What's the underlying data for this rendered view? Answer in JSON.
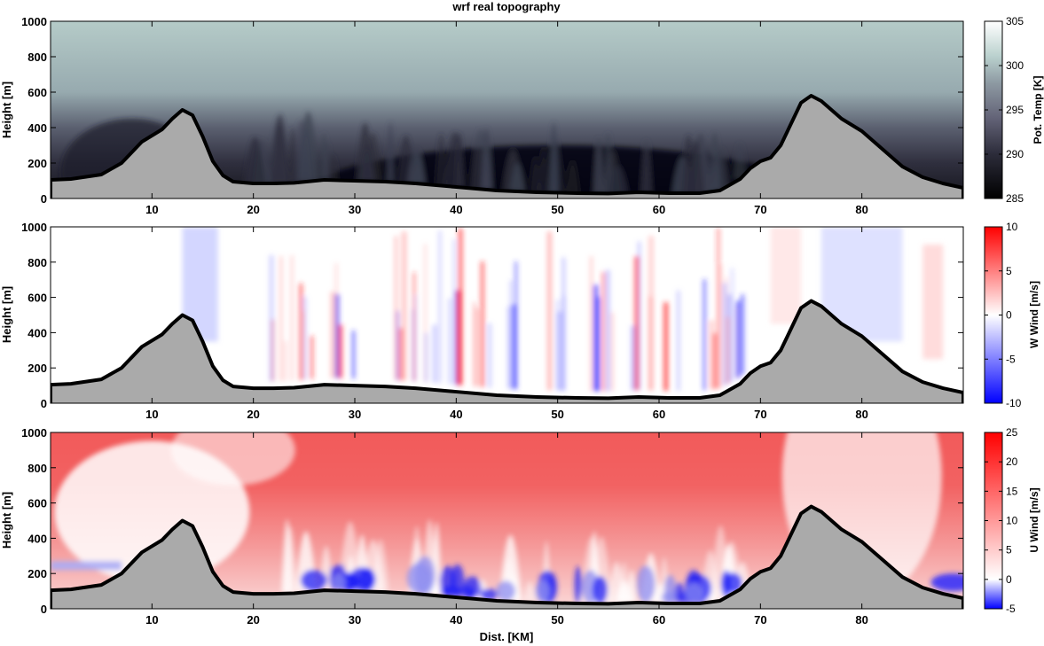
{
  "title": "wrf real topography",
  "colors": {
    "terrain_fill": "#aaaaaa",
    "terrain_line": "#000000",
    "potential_temperature_scale": [
      "#000000",
      "#2c2c3a",
      "#626276",
      "#8d99a2",
      "#b9d0cd",
      "#ffffff"
    ],
    "diverging_scale": [
      "#0000ff",
      "#ffffff",
      "#ff0000"
    ]
  },
  "chart_data": [
    {
      "type": "heatmap",
      "xlabel": "",
      "ylabel": "Height [m]",
      "colorbar_label": "Pot. Temp [K]",
      "colorbar_ticks": [
        285,
        290,
        295,
        300,
        305
      ],
      "clim": [
        285,
        305
      ],
      "xlim": [
        0,
        90
      ],
      "ylim": [
        0,
        1000
      ],
      "x_ticks": [
        10,
        20,
        30,
        40,
        50,
        60,
        70,
        80
      ],
      "y_ticks": [
        0,
        200,
        400,
        600,
        800,
        1000
      ],
      "terrain": {
        "x": [
          0,
          2,
          5,
          7,
          9,
          11,
          12,
          13,
          14,
          15,
          16,
          17,
          18,
          20,
          22,
          24,
          27,
          30,
          33,
          36,
          40,
          44,
          48,
          52,
          55,
          58,
          61,
          64,
          66,
          68,
          69,
          70,
          71,
          72,
          73,
          74,
          75,
          76,
          78,
          80,
          82,
          84,
          86,
          88,
          90
        ],
        "height": [
          105,
          110,
          135,
          200,
          320,
          390,
          450,
          500,
          470,
          350,
          210,
          130,
          95,
          85,
          85,
          88,
          105,
          100,
          95,
          85,
          65,
          45,
          35,
          30,
          28,
          35,
          30,
          30,
          45,
          110,
          170,
          210,
          230,
          300,
          420,
          540,
          580,
          550,
          450,
          380,
          280,
          180,
          120,
          85,
          60
        ]
      }
    },
    {
      "type": "heatmap",
      "xlabel": "",
      "ylabel": "Height [m]",
      "colorbar_label": "W Wind [m/s]",
      "colorbar_ticks": [
        -10,
        -5,
        0,
        5,
        10
      ],
      "clim": [
        -10,
        10
      ],
      "xlim": [
        0,
        90
      ],
      "ylim": [
        0,
        1000
      ],
      "x_ticks": [
        10,
        20,
        30,
        40,
        50,
        60,
        70,
        80
      ],
      "y_ticks": [
        0,
        200,
        400,
        600,
        800,
        1000
      ]
    },
    {
      "type": "heatmap",
      "xlabel": "Dist. [KM]",
      "ylabel": "Height [m]",
      "colorbar_label": "U Wind [m/s]",
      "colorbar_ticks": [
        -5,
        0,
        5,
        10,
        15,
        20,
        25
      ],
      "clim": [
        -5,
        25
      ],
      "xlim": [
        0,
        90
      ],
      "ylim": [
        0,
        1000
      ],
      "x_ticks": [
        10,
        20,
        30,
        40,
        50,
        60,
        70,
        80
      ],
      "y_ticks": [
        0,
        200,
        400,
        600,
        800,
        1000
      ]
    }
  ]
}
